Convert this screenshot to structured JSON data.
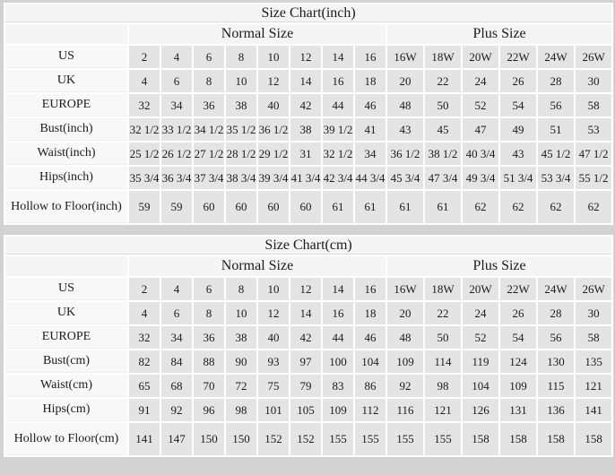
{
  "page": {
    "background": "#d2d2d2",
    "header_bg": "#f5f5f5",
    "label_bg": "#f8f8f8",
    "cell_bg": "#e4e4e4",
    "text_color": "#1b1b1b"
  },
  "chart_data": [
    {
      "type": "table",
      "title": "Size Chart(inch)",
      "group_headers": [
        "Normal Size",
        "Plus Size"
      ],
      "normal_col_count": 8,
      "plus_col_count": 6,
      "size_columns": [
        "2",
        "4",
        "6",
        "8",
        "10",
        "12",
        "14",
        "16",
        "16W",
        "18W",
        "20W",
        "22W",
        "24W",
        "26W"
      ],
      "rows": [
        {
          "label": "US",
          "values": [
            "2",
            "4",
            "6",
            "8",
            "10",
            "12",
            "14",
            "16",
            "16W",
            "18W",
            "20W",
            "22W",
            "24W",
            "26W"
          ]
        },
        {
          "label": "UK",
          "values": [
            "4",
            "6",
            "8",
            "10",
            "12",
            "14",
            "16",
            "18",
            "20",
            "22",
            "24",
            "26",
            "28",
            "30"
          ]
        },
        {
          "label": "EUROPE",
          "values": [
            "32",
            "34",
            "36",
            "38",
            "40",
            "42",
            "44",
            "46",
            "48",
            "50",
            "52",
            "54",
            "56",
            "58"
          ]
        },
        {
          "label": "Bust(inch)",
          "values": [
            "32 1/2",
            "33 1/2",
            "34 1/2",
            "35 1/2",
            "36 1/2",
            "38",
            "39 1/2",
            "41",
            "43",
            "45",
            "47",
            "49",
            "51",
            "53"
          ]
        },
        {
          "label": "Waist(inch)",
          "values": [
            "25 1/2",
            "26 1/2",
            "27 1/2",
            "28 1/2",
            "29 1/2",
            "31",
            "32 1/2",
            "34",
            "36 1/2",
            "38 1/2",
            "40 3/4",
            "43",
            "45 1/2",
            "47 1/2"
          ]
        },
        {
          "label": "Hips(inch)",
          "values": [
            "35 3/4",
            "36 3/4",
            "37 3/4",
            "38 3/4",
            "39 3/4",
            "41 3/4",
            "42 3/4",
            "44 3/4",
            "45 3/4",
            "47 3/4",
            "49 3/4",
            "51 3/4",
            "53 3/4",
            "55 1/2"
          ]
        },
        {
          "label": "Hollow to Floor(inch)",
          "values": [
            "59",
            "59",
            "60",
            "60",
            "60",
            "60",
            "61",
            "61",
            "61",
            "61",
            "62",
            "62",
            "62",
            "62"
          ]
        }
      ]
    },
    {
      "type": "table",
      "title": "Size Chart(cm)",
      "group_headers": [
        "Normal Size",
        "Plus Size"
      ],
      "normal_col_count": 8,
      "plus_col_count": 6,
      "size_columns": [
        "2",
        "4",
        "6",
        "8",
        "10",
        "12",
        "14",
        "16",
        "16W",
        "18W",
        "20W",
        "22W",
        "24W",
        "26W"
      ],
      "rows": [
        {
          "label": "US",
          "values": [
            "2",
            "4",
            "6",
            "8",
            "10",
            "12",
            "14",
            "16",
            "16W",
            "18W",
            "20W",
            "22W",
            "24W",
            "26W"
          ]
        },
        {
          "label": "UK",
          "values": [
            "4",
            "6",
            "8",
            "10",
            "12",
            "14",
            "16",
            "18",
            "20",
            "22",
            "24",
            "26",
            "28",
            "30"
          ]
        },
        {
          "label": "EUROPE",
          "values": [
            "32",
            "34",
            "36",
            "38",
            "40",
            "42",
            "44",
            "46",
            "48",
            "50",
            "52",
            "54",
            "56",
            "58"
          ]
        },
        {
          "label": "Bust(cm)",
          "values": [
            "82",
            "84",
            "88",
            "90",
            "93",
            "97",
            "100",
            "104",
            "109",
            "114",
            "119",
            "124",
            "130",
            "135"
          ]
        },
        {
          "label": "Waist(cm)",
          "values": [
            "65",
            "68",
            "70",
            "72",
            "75",
            "79",
            "83",
            "86",
            "92",
            "98",
            "104",
            "109",
            "115",
            "121"
          ]
        },
        {
          "label": "Hips(cm)",
          "values": [
            "91",
            "92",
            "96",
            "98",
            "101",
            "105",
            "109",
            "112",
            "116",
            "121",
            "126",
            "131",
            "136",
            "141"
          ]
        },
        {
          "label": "Hollow to Floor(cm)",
          "values": [
            "141",
            "147",
            "150",
            "150",
            "152",
            "152",
            "155",
            "155",
            "155",
            "155",
            "158",
            "158",
            "158",
            "158"
          ]
        }
      ]
    }
  ]
}
